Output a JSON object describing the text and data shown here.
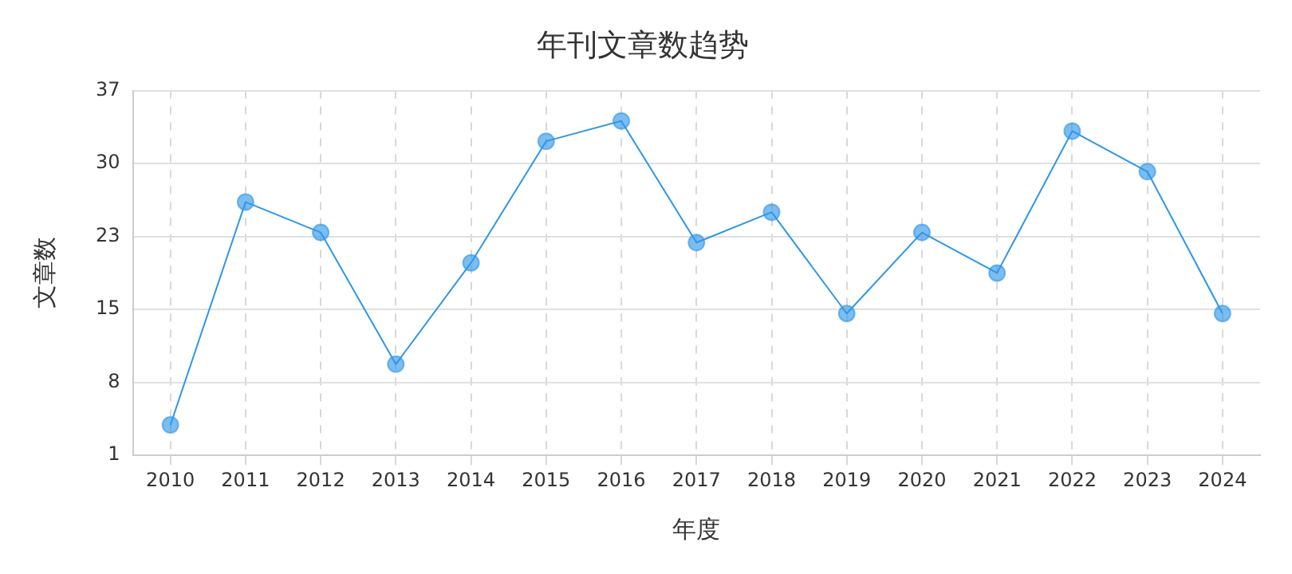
{
  "chart_data": {
    "type": "line",
    "title": "年刊文章数趋势",
    "xlabel": "年度",
    "ylabel": "文章数",
    "categories": [
      "2010",
      "2011",
      "2012",
      "2013",
      "2014",
      "2015",
      "2016",
      "2017",
      "2018",
      "2019",
      "2020",
      "2021",
      "2022",
      "2023",
      "2024"
    ],
    "series": [
      {
        "color": "#2f96e8",
        "values": [
          4,
          26,
          23,
          10,
          20,
          32,
          34,
          22,
          25,
          15,
          23,
          19,
          33,
          29,
          15
        ]
      }
    ],
    "ylim": [
      1,
      37
    ],
    "yticks": [
      1,
      {
        "value": 8.2,
        "label": "8"
      },
      {
        "value": 15.4,
        "label": "15"
      },
      {
        "value": 22.6,
        "label": "23"
      },
      {
        "value": 29.8,
        "label": "30"
      },
      37
    ],
    "grid": true,
    "marker": "circle",
    "line_style": "solid",
    "legend": false
  }
}
